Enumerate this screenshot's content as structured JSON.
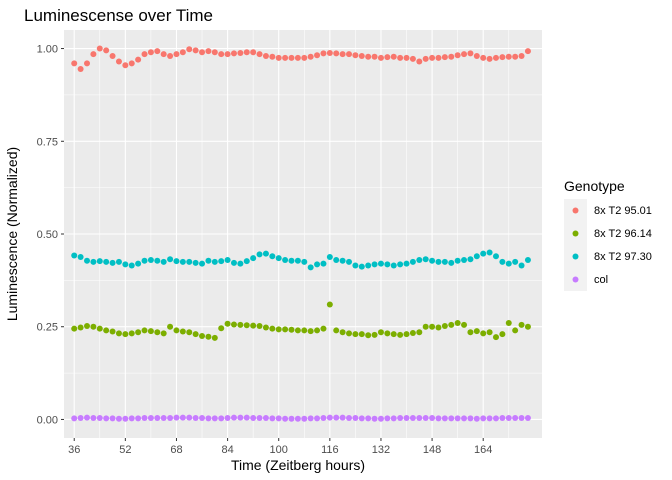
{
  "chart_data": {
    "type": "scatter",
    "title": "Luminescense over Time",
    "xlabel": "Time (Zeitberg hours)",
    "ylabel": "Luminescence (Normalized)",
    "xlim": [
      32.8,
      182.4
    ],
    "ylim": [
      -0.05,
      1.05
    ],
    "x_ticks": [
      36,
      52,
      68,
      84,
      100,
      116,
      132,
      148,
      164
    ],
    "y_ticks": [
      0.0,
      0.25,
      0.5,
      0.75,
      1.0
    ],
    "y_tick_labels": [
      "0.00",
      "0.25",
      "0.50",
      "0.75",
      "1.00"
    ],
    "grid": true,
    "legend": {
      "title": "Genotype",
      "position": "right"
    },
    "x": [
      36,
      38,
      40,
      42,
      44,
      46,
      48,
      50,
      52,
      54,
      56,
      58,
      60,
      62,
      64,
      66,
      68,
      70,
      72,
      74,
      76,
      78,
      80,
      82,
      84,
      86,
      88,
      90,
      92,
      94,
      96,
      98,
      100,
      102,
      104,
      106,
      108,
      110,
      112,
      114,
      116,
      118,
      120,
      122,
      124,
      126,
      128,
      130,
      132,
      134,
      136,
      138,
      140,
      142,
      144,
      146,
      148,
      150,
      152,
      154,
      156,
      158,
      160,
      162,
      164,
      166,
      168,
      170,
      172,
      174,
      176,
      178
    ],
    "series": [
      {
        "name": "8x T2 95.01",
        "color": "#F8766D",
        "values": [
          0.96,
          0.945,
          0.96,
          0.985,
          1.0,
          0.995,
          0.98,
          0.965,
          0.955,
          0.96,
          0.97,
          0.985,
          0.99,
          0.993,
          0.985,
          0.98,
          0.985,
          0.99,
          0.998,
          0.995,
          0.99,
          0.993,
          0.99,
          0.985,
          0.985,
          0.987,
          0.988,
          0.99,
          0.99,
          0.985,
          0.98,
          0.978,
          0.975,
          0.975,
          0.975,
          0.975,
          0.975,
          0.978,
          0.982,
          0.987,
          0.988,
          0.987,
          0.985,
          0.985,
          0.982,
          0.98,
          0.978,
          0.978,
          0.975,
          0.977,
          0.978,
          0.975,
          0.975,
          0.972,
          0.965,
          0.972,
          0.975,
          0.975,
          0.977,
          0.978,
          0.982,
          0.985,
          0.987,
          0.98,
          0.975,
          0.972,
          0.975,
          0.977,
          0.978,
          0.978,
          0.98,
          0.993
        ]
      },
      {
        "name": "8x T2 96.14",
        "color": "#7CAE00",
        "values": [
          0.245,
          0.248,
          0.252,
          0.25,
          0.245,
          0.24,
          0.237,
          0.232,
          0.23,
          0.232,
          0.235,
          0.24,
          0.238,
          0.235,
          0.232,
          0.25,
          0.24,
          0.237,
          0.235,
          0.23,
          0.225,
          0.223,
          0.22,
          0.246,
          0.258,
          0.256,
          0.255,
          0.254,
          0.253,
          0.252,
          0.248,
          0.245,
          0.243,
          0.243,
          0.242,
          0.24,
          0.24,
          0.238,
          0.24,
          0.245,
          0.31,
          0.24,
          0.235,
          0.232,
          0.23,
          0.23,
          0.227,
          0.228,
          0.235,
          0.232,
          0.23,
          0.228,
          0.23,
          0.233,
          0.235,
          0.25,
          0.25,
          0.248,
          0.252,
          0.255,
          0.26,
          0.255,
          0.235,
          0.238,
          0.232,
          0.235,
          0.222,
          0.23,
          0.26,
          0.24,
          0.255,
          0.25
        ]
      },
      {
        "name": "8x T2 97.30",
        "color": "#00BFC4",
        "values": [
          0.442,
          0.438,
          0.428,
          0.425,
          0.427,
          0.425,
          0.422,
          0.425,
          0.418,
          0.415,
          0.42,
          0.428,
          0.43,
          0.428,
          0.425,
          0.432,
          0.427,
          0.425,
          0.425,
          0.422,
          0.42,
          0.428,
          0.425,
          0.427,
          0.43,
          0.422,
          0.42,
          0.427,
          0.435,
          0.445,
          0.447,
          0.44,
          0.435,
          0.43,
          0.428,
          0.428,
          0.425,
          0.41,
          0.418,
          0.42,
          0.438,
          0.43,
          0.428,
          0.425,
          0.415,
          0.412,
          0.415,
          0.418,
          0.42,
          0.418,
          0.415,
          0.418,
          0.42,
          0.425,
          0.43,
          0.432,
          0.428,
          0.425,
          0.425,
          0.422,
          0.428,
          0.43,
          0.432,
          0.44,
          0.447,
          0.45,
          0.44,
          0.425,
          0.42,
          0.425,
          0.415,
          0.43
        ]
      },
      {
        "name": "col",
        "color": "#C77CFF",
        "values": [
          0.003,
          0.004,
          0.005,
          0.004,
          0.004,
          0.003,
          0.003,
          0.002,
          0.002,
          0.003,
          0.003,
          0.004,
          0.004,
          0.004,
          0.004,
          0.004,
          0.005,
          0.005,
          0.005,
          0.004,
          0.004,
          0.003,
          0.003,
          0.003,
          0.004,
          0.005,
          0.005,
          0.005,
          0.004,
          0.004,
          0.004,
          0.003,
          0.003,
          0.002,
          0.002,
          0.002,
          0.002,
          0.003,
          0.003,
          0.004,
          0.005,
          0.005,
          0.005,
          0.004,
          0.004,
          0.003,
          0.003,
          0.002,
          0.002,
          0.003,
          0.003,
          0.004,
          0.004,
          0.004,
          0.004,
          0.004,
          0.004,
          0.003,
          0.003,
          0.003,
          0.003,
          0.003,
          0.003,
          0.002,
          0.003,
          0.003,
          0.003,
          0.004,
          0.004,
          0.004,
          0.004,
          0.004
        ]
      }
    ]
  }
}
